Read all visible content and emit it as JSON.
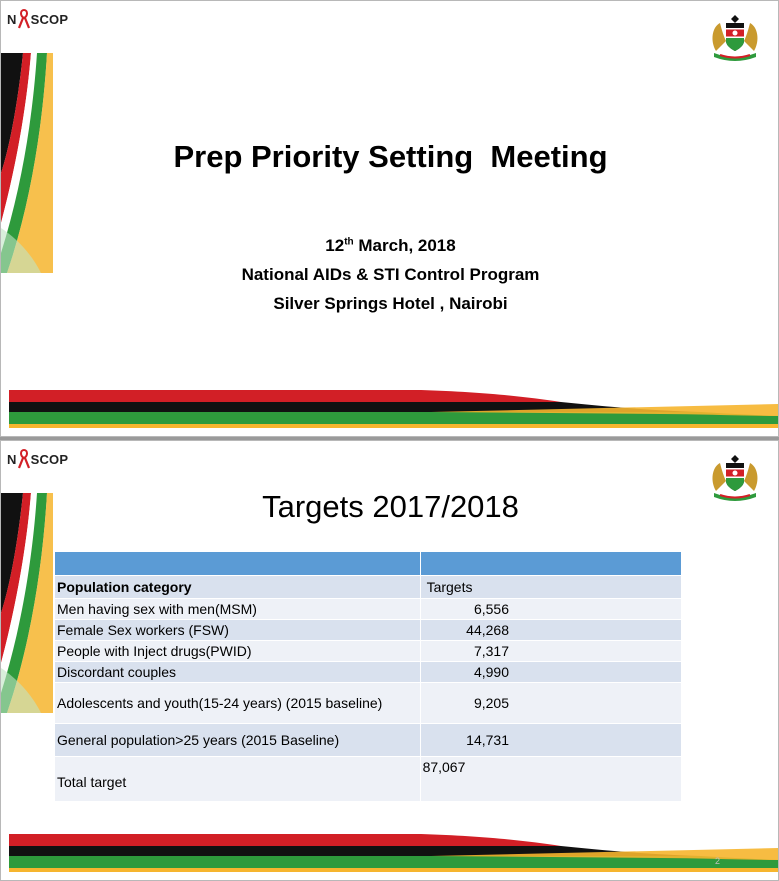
{
  "logo": {
    "brand": "SCOP",
    "prefix": "N"
  },
  "slide1": {
    "title": "Prep Priority Setting  Meeting",
    "date_day": "12",
    "date_suffix": "th",
    "date_rest": " March, 2018",
    "organization": "National AIDs & STI Control Program",
    "venue": "Silver Springs Hotel , Nairobi"
  },
  "slide2": {
    "title": "Targets 2017/2018",
    "page_number": "2",
    "table": {
      "header": {
        "category": "Population category",
        "targets": "Targets"
      },
      "rows": [
        {
          "category": "Men having sex with men(MSM)",
          "target": "6,556"
        },
        {
          "category": "Female Sex workers (FSW)",
          "target": "44,268"
        },
        {
          "category": "People with Inject drugs(PWID)",
          "target": "7,317"
        },
        {
          "category": "Discordant couples",
          "target": "4,990"
        },
        {
          "category": "Adolescents and youth(15-24 years) (2015 baseline)",
          "target": "9,205"
        },
        {
          "category": "General population>25 years (2015 Baseline)",
          "target": "14,731"
        },
        {
          "category": "Total target",
          "target": "87,067"
        }
      ]
    }
  },
  "colors": {
    "kenya_red": "#d21f26",
    "kenya_green": "#2e9a3c",
    "kenya_black": "#111111",
    "gold": "#f6b52e",
    "table_header_blue": "#5b9bd5"
  }
}
